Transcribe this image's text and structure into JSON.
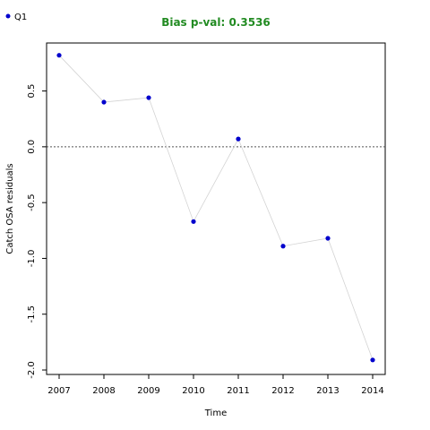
{
  "chart_data": {
    "type": "scatter",
    "title": "Bias p-val: 0.3536",
    "title_color": "#228B22",
    "xlabel": "Time",
    "ylabel": "Catch OSA residuals",
    "xlim": [
      2006.72,
      2014.28
    ],
    "ylim": [
      -2.04,
      0.93
    ],
    "x_ticks": [
      "2007",
      "2008",
      "2009",
      "2010",
      "2011",
      "2012",
      "2013",
      "2014"
    ],
    "y_ticks": [
      "-2.0",
      "-1.5",
      "-1.0",
      "-0.5",
      "0.0",
      "0.5"
    ],
    "y_tick_values": [
      -2.0,
      -1.5,
      -1.0,
      -0.5,
      0.0,
      0.5
    ],
    "reference_line": 0.0,
    "grid": false,
    "legend": {
      "position": "top-left",
      "entries": [
        "Q1"
      ]
    },
    "point_color": "#0000CD",
    "line_color": "#d3d3d3",
    "series": [
      {
        "name": "Q1",
        "x": [
          2007,
          2008,
          2009,
          2010,
          2011,
          2012,
          2013,
          2014
        ],
        "y": [
          0.82,
          0.4,
          0.44,
          -0.67,
          0.07,
          -0.89,
          -0.82,
          -1.91
        ]
      }
    ]
  }
}
